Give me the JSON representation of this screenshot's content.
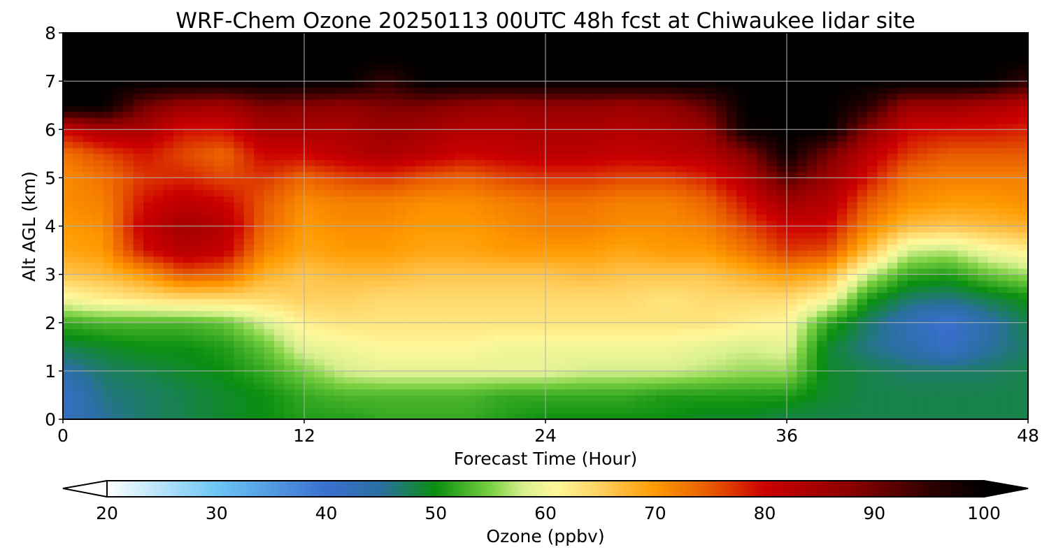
{
  "chart_data": {
    "type": "heatmap",
    "title": "WRF-Chem Ozone  20250113 00UTC 48h fcst at Chiwaukee lidar site",
    "xlabel": "Forecast Time (Hour)",
    "ylabel": "Alt AGL (km)",
    "xlim": [
      0,
      48
    ],
    "ylim": [
      0,
      8
    ],
    "x_ticks": [
      0,
      12,
      24,
      36,
      48
    ],
    "y_ticks": [
      0,
      1,
      2,
      3,
      4,
      5,
      6,
      7,
      8
    ],
    "grid": true,
    "x": [
      0,
      2,
      4,
      6,
      8,
      10,
      12,
      14,
      16,
      18,
      20,
      22,
      24,
      26,
      28,
      30,
      32,
      34,
      36,
      38,
      40,
      42,
      44,
      46,
      48
    ],
    "y": [
      0,
      0.5,
      1,
      1.5,
      2,
      2.5,
      3,
      3.5,
      4,
      4.5,
      5,
      5.5,
      6,
      6.5,
      7,
      7.5,
      8
    ],
    "z": [
      [
        42,
        45,
        47,
        48,
        49,
        50,
        51,
        51,
        52,
        52,
        52,
        51,
        50,
        50,
        50,
        50,
        49,
        49,
        48,
        48,
        48,
        48,
        48,
        48,
        48
      ],
      [
        41,
        46,
        47,
        48,
        49,
        50,
        52,
        53,
        53,
        53,
        53,
        52,
        52,
        52,
        52,
        51,
        51,
        51,
        51,
        49,
        48,
        48,
        48,
        48,
        48
      ],
      [
        44,
        47,
        48,
        49,
        50,
        52,
        55,
        58,
        59,
        59,
        59,
        59,
        59,
        58,
        58,
        58,
        57,
        56,
        56,
        49,
        48,
        47,
        47,
        47,
        48
      ],
      [
        48,
        49,
        50,
        50,
        51,
        54,
        59,
        60,
        61,
        61,
        61,
        60,
        60,
        60,
        60,
        60,
        59,
        58,
        59,
        49,
        46,
        44,
        41,
        45,
        47
      ],
      [
        52,
        53,
        53,
        53,
        54,
        58,
        62,
        63,
        63,
        63,
        63,
        63,
        63,
        63,
        63,
        63,
        63,
        62,
        61,
        52,
        47,
        43,
        40,
        44,
        48
      ],
      [
        60,
        62,
        63,
        64,
        64,
        64,
        65,
        65,
        64,
        64,
        64,
        64,
        64,
        64,
        64,
        63,
        64,
        64,
        64,
        61,
        51,
        47,
        46,
        48,
        50
      ],
      [
        66,
        67,
        70,
        75,
        74,
        68,
        66,
        67,
        67,
        66,
        66,
        66,
        66,
        67,
        66,
        66,
        66,
        68,
        70,
        68,
        58,
        52,
        51,
        54,
        56
      ],
      [
        69,
        70,
        79,
        83,
        81,
        72,
        69,
        70,
        70,
        69,
        69,
        70,
        70,
        70,
        69,
        70,
        70,
        73,
        77,
        76,
        67,
        58,
        57,
        60,
        62
      ],
      [
        70,
        71,
        81,
        85,
        83,
        74,
        70,
        71,
        71,
        70,
        70,
        71,
        72,
        72,
        71,
        71,
        72,
        76,
        80,
        80,
        72,
        67,
        66,
        67,
        68
      ],
      [
        71,
        72,
        79,
        82,
        80,
        75,
        71,
        72,
        72,
        71,
        71,
        72,
        73,
        73,
        72,
        72,
        74,
        79,
        85,
        83,
        75,
        71,
        70,
        70,
        71
      ],
      [
        71,
        73,
        77,
        78,
        76,
        77,
        74,
        76,
        77,
        75,
        74,
        76,
        77,
        77,
        76,
        76,
        78,
        83,
        92,
        86,
        79,
        73,
        72,
        72,
        72
      ],
      [
        73,
        76,
        79,
        76,
        74,
        80,
        80,
        82,
        84,
        82,
        80,
        81,
        82,
        82,
        81,
        82,
        83,
        88,
        99,
        90,
        82,
        77,
        75,
        75,
        75
      ],
      [
        80,
        84,
        84,
        79,
        79,
        84,
        84,
        84,
        86,
        85,
        83,
        83,
        84,
        84,
        83,
        84,
        86,
        99,
        100,
        100,
        88,
        80,
        79,
        79,
        78
      ],
      [
        100,
        100,
        90,
        86,
        85,
        89,
        88,
        87,
        89,
        89,
        87,
        86,
        87,
        87,
        86,
        87,
        91,
        100,
        100,
        100,
        96,
        86,
        86,
        84,
        82
      ],
      [
        100,
        100,
        100,
        100,
        100,
        100,
        100,
        100,
        95,
        100,
        100,
        100,
        100,
        100,
        100,
        100,
        100,
        100,
        100,
        100,
        100,
        100,
        100,
        100,
        95
      ],
      [
        100,
        100,
        100,
        100,
        100,
        100,
        100,
        100,
        100,
        100,
        100,
        100,
        100,
        100,
        100,
        100,
        100,
        100,
        100,
        100,
        100,
        100,
        100,
        100,
        100
      ],
      [
        100,
        100,
        100,
        100,
        100,
        100,
        100,
        100,
        100,
        100,
        100,
        100,
        100,
        100,
        100,
        100,
        100,
        100,
        100,
        100,
        100,
        100,
        100,
        100,
        100
      ]
    ],
    "colorbar": {
      "label": "Ozone  (ppbv)",
      "min": 20,
      "max": 100,
      "ticks": [
        20,
        30,
        40,
        50,
        60,
        70,
        80,
        90,
        100
      ],
      "extend": "both",
      "stops": [
        {
          "v": 20,
          "c": "#ffffff"
        },
        {
          "v": 30,
          "c": "#6cc6f5"
        },
        {
          "v": 40,
          "c": "#3a6fd0"
        },
        {
          "v": 45,
          "c": "#2a6fa0"
        },
        {
          "v": 50,
          "c": "#0a8f10"
        },
        {
          "v": 55,
          "c": "#7ad040"
        },
        {
          "v": 58,
          "c": "#d8f090"
        },
        {
          "v": 61,
          "c": "#fff89a"
        },
        {
          "v": 65,
          "c": "#ffd060"
        },
        {
          "v": 70,
          "c": "#ff9a00"
        },
        {
          "v": 75,
          "c": "#e85a00"
        },
        {
          "v": 80,
          "c": "#cc0000"
        },
        {
          "v": 88,
          "c": "#8a0000"
        },
        {
          "v": 95,
          "c": "#300000"
        },
        {
          "v": 100,
          "c": "#000000"
        }
      ]
    }
  }
}
